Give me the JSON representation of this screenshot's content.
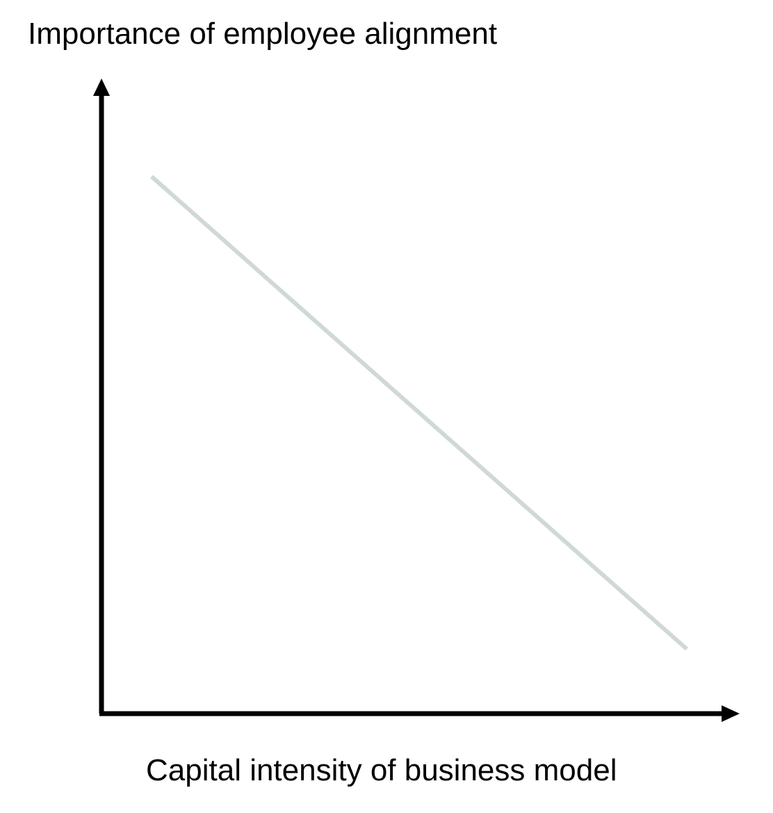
{
  "chart_data": {
    "type": "line",
    "title": "",
    "ylabel": "Importance of employee alignment",
    "xlabel": "Capital intensity of business model",
    "ticks": "none",
    "grid": false,
    "series": [
      {
        "trend": "decreasing",
        "x": [
          "low",
          "high"
        ],
        "y": [
          "high",
          "low"
        ],
        "color": "#d0d8d8"
      }
    ],
    "axis_color": "#000000"
  }
}
